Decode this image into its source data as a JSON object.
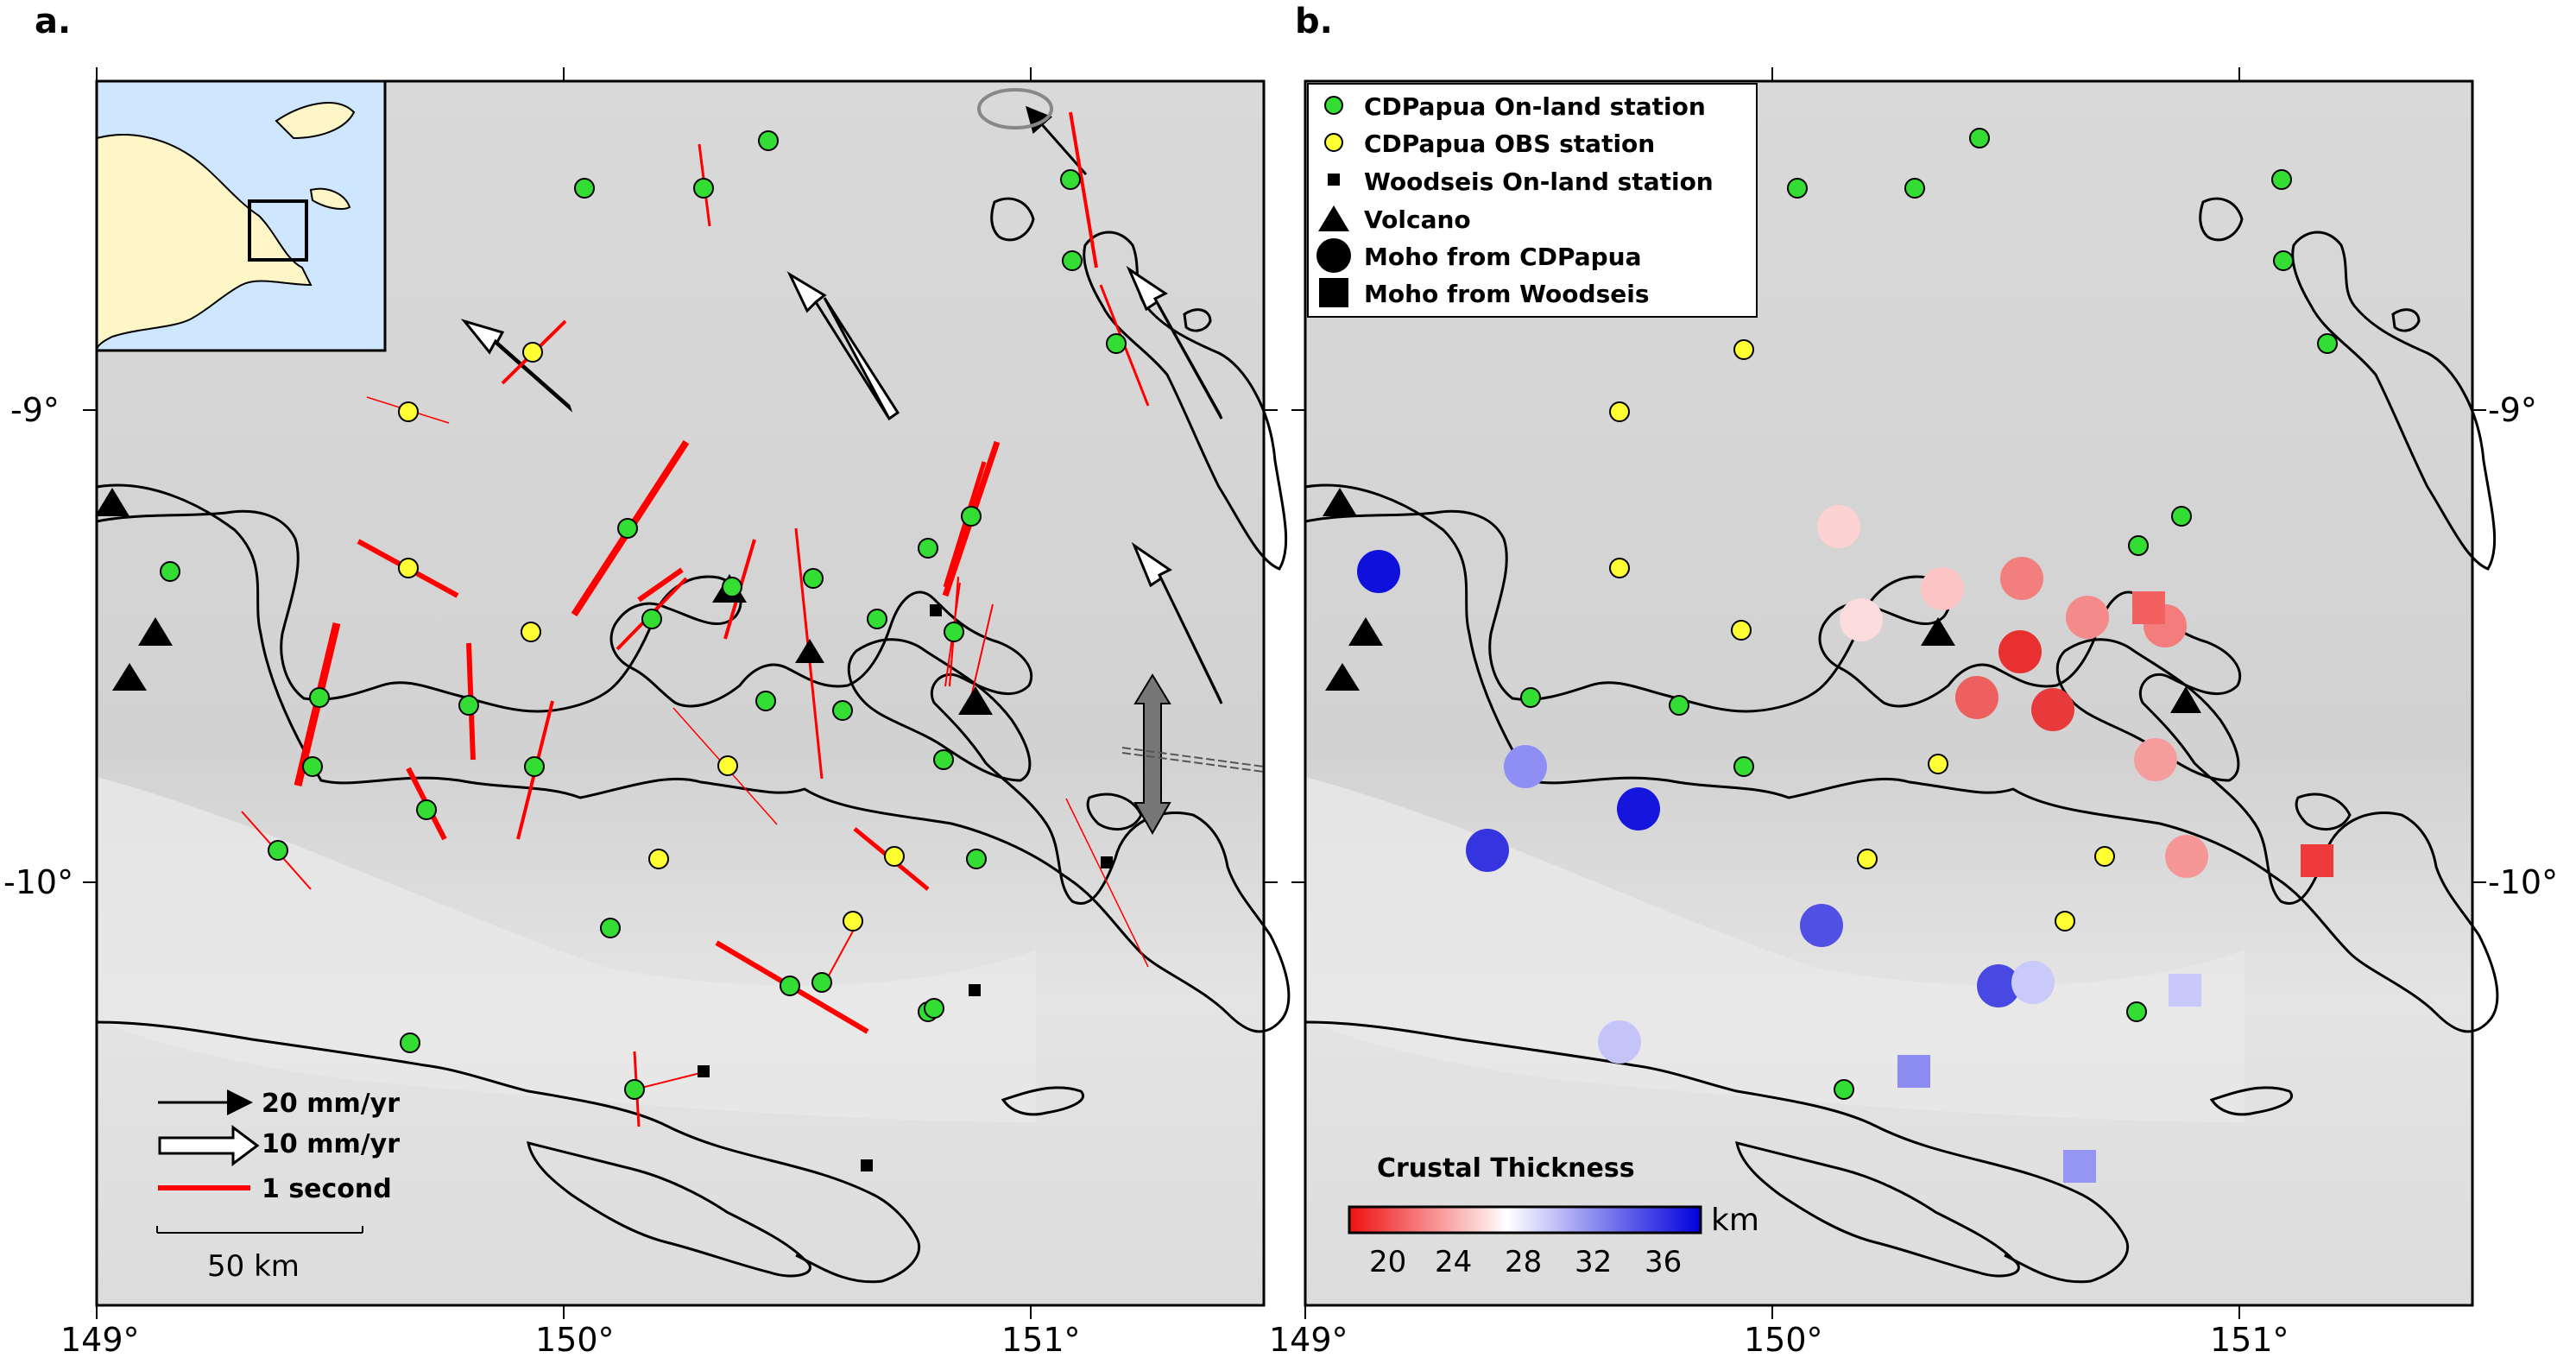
{
  "figure": {
    "panel_a_label": "a.",
    "panel_b_label": "b.",
    "x_tick_labels": [
      "149°",
      "150°",
      "151°"
    ],
    "y_tick_labels": [
      "-9°",
      "-10°"
    ]
  },
  "panel_a": {
    "legend": {
      "arrow_black": "20 mm/yr",
      "arrow_white": "10 mm/yr",
      "red_bar": "1 second"
    },
    "scale_bar": "50 km"
  },
  "panel_b": {
    "legend": [
      {
        "symbol": "green-circle",
        "label": "CDPapua On-land station"
      },
      {
        "symbol": "yellow-circle",
        "label": "CDPapua OBS station"
      },
      {
        "symbol": "black-small-square",
        "label": "Woodseis On-land station"
      },
      {
        "symbol": "black-triangle",
        "label": "Volcano"
      },
      {
        "symbol": "black-large-circle",
        "label": "Moho from CDPapua"
      },
      {
        "symbol": "black-large-square",
        "label": "Moho from Woodseis"
      }
    ],
    "colorbar": {
      "title": "Crustal Thickness",
      "unit": "km",
      "ticks": [
        "20",
        "24",
        "28",
        "32",
        "36"
      ],
      "colors": [
        "#ee1111",
        "#ffffff",
        "#0000dd"
      ]
    }
  },
  "colors": {
    "land_station": "#33dd33",
    "obs_station": "#ffff33",
    "splitting_bar": "#ff0000",
    "map_background": "#d6d6d6",
    "inset_sea": "#cfe6ff",
    "inset_land": "#fff6c8"
  }
}
